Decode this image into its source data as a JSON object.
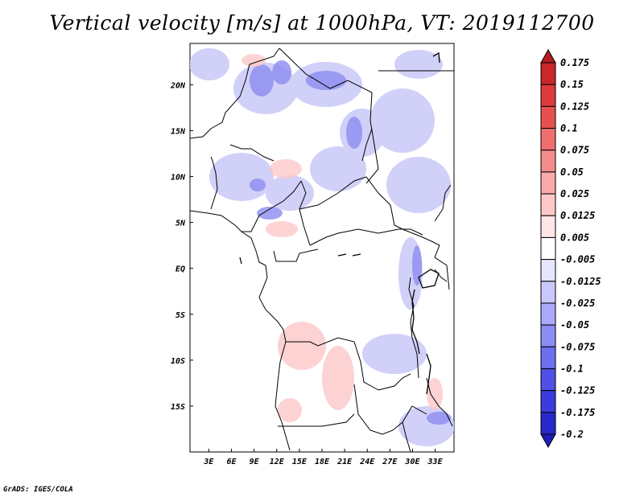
{
  "title": "Vertical velocity [m/s] at 1000hPa, VT: 2019112700",
  "credit": "GrADS: IGES/COLA",
  "map": {
    "lon_labels": [
      "3E",
      "6E",
      "9E",
      "12E",
      "15E",
      "18E",
      "21E",
      "24E",
      "27E",
      "30E",
      "33E"
    ],
    "lat_labels": [
      "20N",
      "15N",
      "10N",
      "5N",
      "EQ",
      "5S",
      "10S",
      "15S"
    ],
    "lon_range": [
      0.5,
      35.5
    ],
    "lat_range": [
      -20.0,
      24.5
    ]
  },
  "colorbar": {
    "labels": [
      "0.175",
      "0.15",
      "0.125",
      "0.1",
      "0.075",
      "0.05",
      "0.025",
      "0.0125",
      "0.005",
      "-0.005",
      "-0.0125",
      "-0.025",
      "-0.05",
      "-0.075",
      "-0.1",
      "-0.125",
      "-0.175",
      "-0.2"
    ],
    "colors": [
      "#b41e1e",
      "#c82828",
      "#dc3c3c",
      "#e65050",
      "#f06e6e",
      "#f58c8c",
      "#faaaaa",
      "#fcc8c8",
      "#fee6e6",
      "#ffffff",
      "#e6e6fe",
      "#c8c8fc",
      "#aaaafa",
      "#8c8cf5",
      "#6e6ef0",
      "#5050e6",
      "#3c3cdc",
      "#2828c8",
      "#1e1eb4"
    ]
  }
}
